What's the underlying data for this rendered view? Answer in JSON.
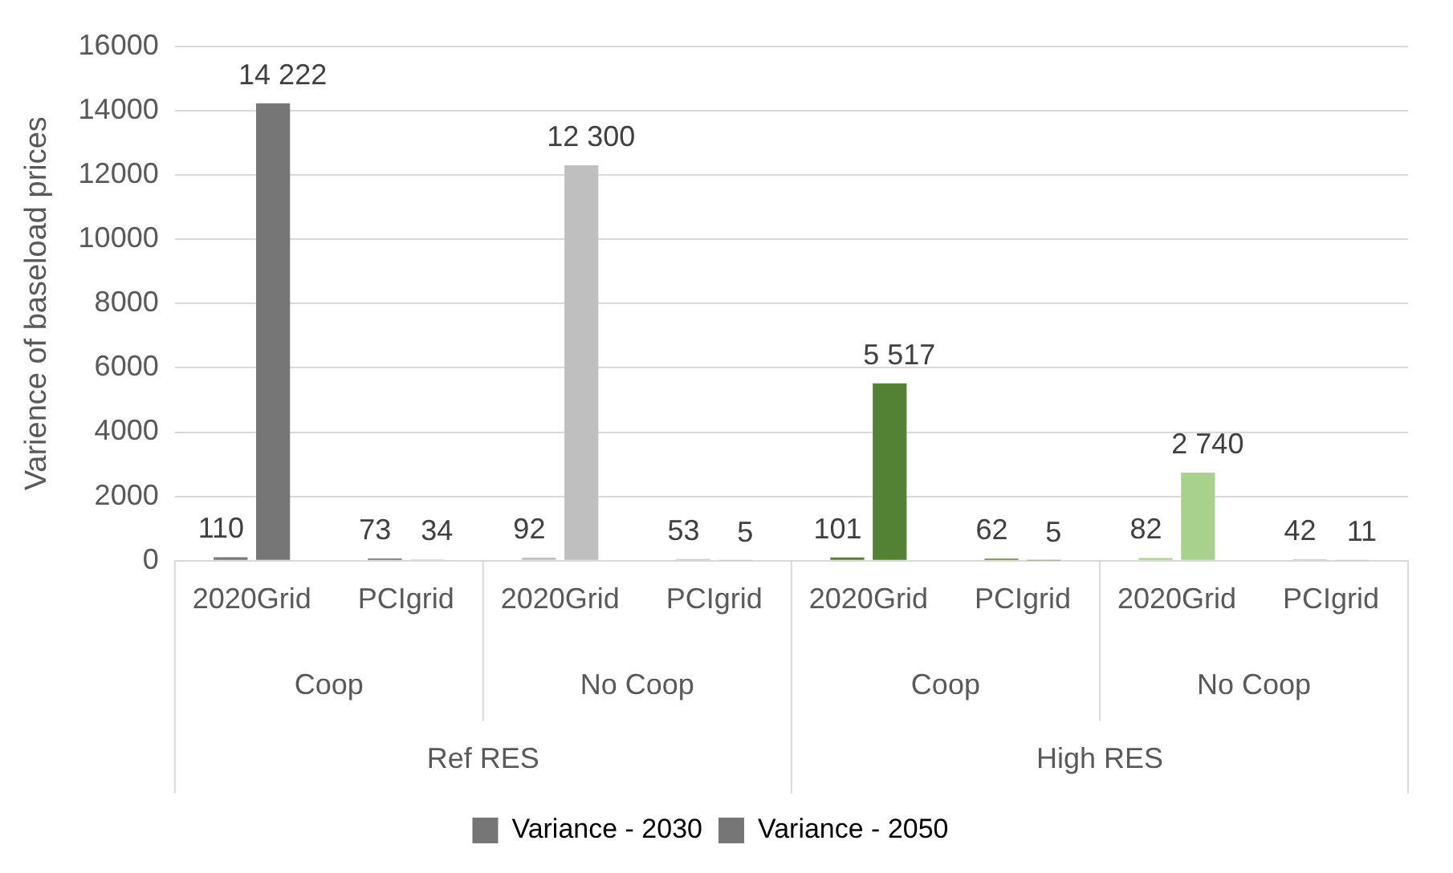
{
  "chart_data": {
    "type": "bar",
    "ylabel": "Varience of baseload prices",
    "categories": [
      "2020Grid",
      "PCIgrid",
      "2020Grid",
      "PCIgrid",
      "2020Grid",
      "PCIgrid",
      "2020Grid",
      "PCIgrid"
    ],
    "annotations": [
      "Coop",
      "No Coop",
      "Coop",
      "No Coop",
      "Ref RES",
      "High RES"
    ],
    "series": [
      {
        "name": "Variance - 2030",
        "color": "#767676",
        "colors": [
          "#767676",
          "#767676",
          "#bfbfbf",
          "#bfbfbf",
          "#548235",
          "#548235",
          "#a9d18e",
          "#a9d18e"
        ],
        "values": [
          110,
          73,
          92,
          53,
          101,
          62,
          82,
          42
        ],
        "value_labels": [
          "110",
          "73",
          "92",
          "53",
          "101",
          "62",
          "82",
          "42"
        ]
      },
      {
        "name": "Variance - 2050",
        "color": "#767676",
        "colors": [
          "#767676",
          "#767676",
          "#bfbfbf",
          "#bfbfbf",
          "#548235",
          "#548235",
          "#a9d18e",
          "#a9d18e"
        ],
        "values": [
          14222,
          34,
          12300,
          5,
          5517,
          5,
          2740,
          11
        ],
        "value_labels": [
          "14 222",
          "34",
          "12 300",
          "5",
          "5 517",
          "5",
          "2 740",
          "11"
        ]
      }
    ],
    "ylim": [
      0,
      16000
    ],
    "yticks": [
      0,
      2000,
      4000,
      6000,
      8000,
      10000,
      12000,
      14000,
      16000
    ],
    "grid": "y",
    "legend": "bottom"
  }
}
